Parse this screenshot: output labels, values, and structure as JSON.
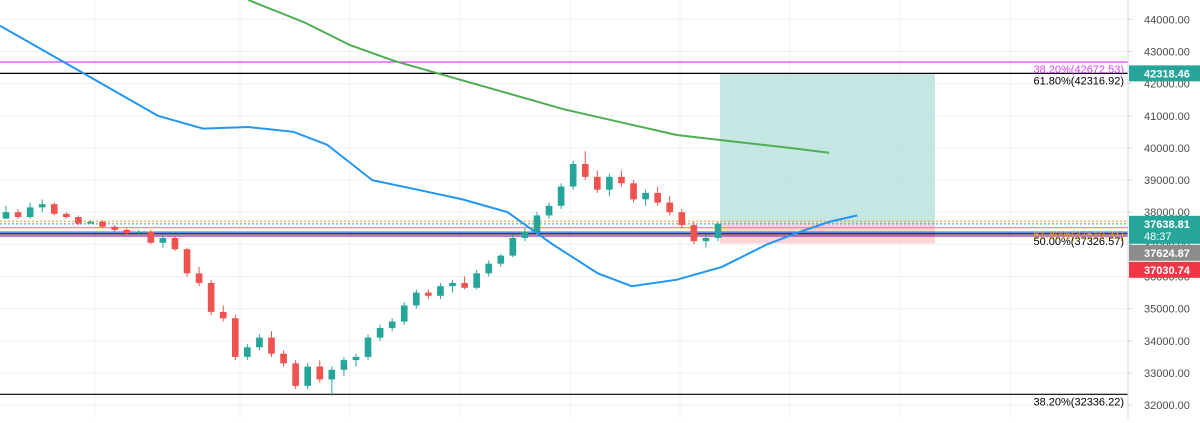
{
  "chart_data": {
    "type": "candlestick",
    "y_axis": {
      "position": "right",
      "ticks": [
        44000,
        43000,
        42000,
        41000,
        40000,
        39000,
        38000,
        37000,
        36000,
        35000,
        34000,
        33000,
        32000
      ],
      "tick_labels": [
        "44000.00",
        "43000.00",
        "42000.00",
        "41000.00",
        "40000.00",
        "39000.00",
        "38000.00",
        "37000.00",
        "36000.00",
        "35000.00",
        "34000.00",
        "33000.00",
        "32000.00"
      ],
      "ylim": [
        31600,
        44600
      ]
    },
    "grid": true,
    "candles": [
      [
        37800,
        38200,
        37900,
        38000
      ],
      [
        38000,
        38100,
        37800,
        37850
      ],
      [
        37850,
        38300,
        37800,
        38150
      ],
      [
        38150,
        38400,
        38000,
        38250
      ],
      [
        38250,
        38300,
        37900,
        37950
      ],
      [
        37950,
        38000,
        37800,
        37850
      ],
      [
        37850,
        37900,
        37600,
        37650
      ],
      [
        37650,
        37750,
        37650,
        37700
      ],
      [
        37700,
        37750,
        37500,
        37550
      ],
      [
        37550,
        37600,
        37400,
        37450
      ],
      [
        37450,
        37500,
        37300,
        37350
      ],
      [
        37350,
        37450,
        37300,
        37400
      ],
      [
        37400,
        37450,
        37000,
        37050
      ],
      [
        37050,
        37300,
        36900,
        37200
      ],
      [
        37200,
        37250,
        36800,
        36850
      ],
      [
        36850,
        36900,
        36000,
        36100
      ],
      [
        36100,
        36300,
        35700,
        35800
      ],
      [
        35800,
        35900,
        34800,
        34900
      ],
      [
        34900,
        35100,
        34600,
        34700
      ],
      [
        34700,
        34800,
        33400,
        33500
      ],
      [
        33500,
        33900,
        33400,
        33800
      ],
      [
        33800,
        34200,
        33700,
        34100
      ],
      [
        34100,
        34300,
        33500,
        33600
      ],
      [
        33600,
        33700,
        33200,
        33300
      ],
      [
        33300,
        33400,
        32500,
        32600
      ],
      [
        32600,
        33300,
        32500,
        33200
      ],
      [
        33200,
        33400,
        32700,
        32800
      ],
      [
        32800,
        33200,
        32300,
        33100
      ],
      [
        33100,
        33500,
        32900,
        33400
      ],
      [
        33400,
        33600,
        33200,
        33500
      ],
      [
        33500,
        34200,
        33400,
        34100
      ],
      [
        34100,
        34500,
        34000,
        34400
      ],
      [
        34400,
        34700,
        34300,
        34600
      ],
      [
        34600,
        35200,
        34500,
        35100
      ],
      [
        35100,
        35600,
        35000,
        35500
      ],
      [
        35500,
        35600,
        35300,
        35400
      ],
      [
        35400,
        35800,
        35300,
        35700
      ],
      [
        35700,
        35900,
        35500,
        35800
      ],
      [
        35800,
        36000,
        35600,
        35650
      ],
      [
        35650,
        36200,
        35600,
        36100
      ],
      [
        36100,
        36500,
        36000,
        36400
      ],
      [
        36400,
        36700,
        36300,
        36650
      ],
      [
        36650,
        37300,
        36600,
        37200
      ],
      [
        37200,
        37500,
        37100,
        37400
      ],
      [
        37400,
        38000,
        37300,
        37900
      ],
      [
        37900,
        38300,
        37800,
        38200
      ],
      [
        38200,
        38900,
        38100,
        38800
      ],
      [
        38800,
        39600,
        38700,
        39500
      ],
      [
        39500,
        39900,
        39000,
        39100
      ],
      [
        39100,
        39300,
        38600,
        38700
      ],
      [
        38700,
        39200,
        38500,
        39100
      ],
      [
        39100,
        39300,
        38800,
        38900
      ],
      [
        38900,
        39000,
        38300,
        38400
      ],
      [
        38400,
        38700,
        38200,
        38600
      ],
      [
        38600,
        38800,
        38200,
        38300
      ],
      [
        38300,
        38500,
        37900,
        38000
      ],
      [
        38000,
        38100,
        37500,
        37600
      ],
      [
        37600,
        37700,
        37000,
        37100
      ],
      [
        37100,
        37300,
        36900,
        37200
      ],
      [
        37200,
        37700,
        37100,
        37640
      ]
    ],
    "ma_blue": [
      [
        0,
        43800
      ],
      [
        0.04,
        43000
      ],
      [
        0.1,
        41800
      ],
      [
        0.14,
        41000
      ],
      [
        0.18,
        40600
      ],
      [
        0.22,
        40650
      ],
      [
        0.26,
        40500
      ],
      [
        0.29,
        40100
      ],
      [
        0.33,
        39000
      ],
      [
        0.37,
        38700
      ],
      [
        0.41,
        38400
      ],
      [
        0.45,
        38000
      ],
      [
        0.49,
        37000
      ],
      [
        0.53,
        36100
      ],
      [
        0.56,
        35700
      ],
      [
        0.6,
        35900
      ],
      [
        0.64,
        36300
      ],
      [
        0.68,
        37000
      ],
      [
        0.71,
        37400
      ],
      [
        0.735,
        37700
      ],
      [
        0.76,
        37900
      ]
    ],
    "ma_green": [
      [
        0.22,
        44600
      ],
      [
        0.27,
        43900
      ],
      [
        0.31,
        43200
      ],
      [
        0.35,
        42700
      ],
      [
        0.4,
        42200
      ],
      [
        0.45,
        41700
      ],
      [
        0.5,
        41200
      ],
      [
        0.55,
        40800
      ],
      [
        0.6,
        40400
      ],
      [
        0.65,
        40200
      ],
      [
        0.7,
        40000
      ],
      [
        0.735,
        39850
      ]
    ],
    "horizontal_lines": [
      {
        "value": 42672.53,
        "color": "#e040fb",
        "label": "38.20%(42672.53)",
        "label_color": "#e040fb"
      },
      {
        "value": 42316.92,
        "color": "#000000",
        "label": "61.80%(42316.92)",
        "label_color": "#000000"
      },
      {
        "value": 37519.31,
        "color": "#ff9800",
        "label": "61.80%(37519.31)",
        "label_color": "#ff9800"
      },
      {
        "value": 37326.57,
        "color": "#000000",
        "label": "50.00%(37326.57)",
        "label_color": "#000000"
      },
      {
        "value": 37380,
        "color": "#2962ff",
        "label": "",
        "label_color": ""
      },
      {
        "value": 37260,
        "color": "#9c27b0",
        "label": "",
        "label_color": ""
      },
      {
        "value": 32336.22,
        "color": "#000000",
        "label": "38.20%(32336.22)",
        "label_color": "#000000"
      }
    ],
    "dotted_lines": [
      {
        "value": 37720,
        "color": "#ff9800"
      },
      {
        "value": 37638.81,
        "color": "#26a69a"
      }
    ],
    "position_box": {
      "entry": 37638.81,
      "target": 42318.46,
      "stop": 37030.74,
      "target_color": "#b2dfdb",
      "stop_color": "#ffcdd2"
    },
    "price_badges": [
      {
        "label": "42318.46",
        "value": 42318.46,
        "bg": "#26a69a",
        "text_color": "#ffffff"
      },
      {
        "label": "37638.81",
        "value": 37638.81,
        "bg": "#26a69a",
        "text_color": "#ffffff",
        "sub": "48:37"
      },
      {
        "label": "37624.87",
        "value": 37624.87,
        "bg": "#8c8c8c",
        "text_color": "#ffffff"
      },
      {
        "label": "37030.74",
        "value": 37030.74,
        "bg": "#f23645",
        "text_color": "#ffffff"
      }
    ],
    "colors": {
      "up": "#26a69a",
      "down": "#ef5350",
      "ma_blue": "#2196f3",
      "ma_green": "#4caf50",
      "grid": "#eef0f3",
      "axis_text": "#4a4a4a",
      "axis_border": "#d1d4dc"
    }
  }
}
